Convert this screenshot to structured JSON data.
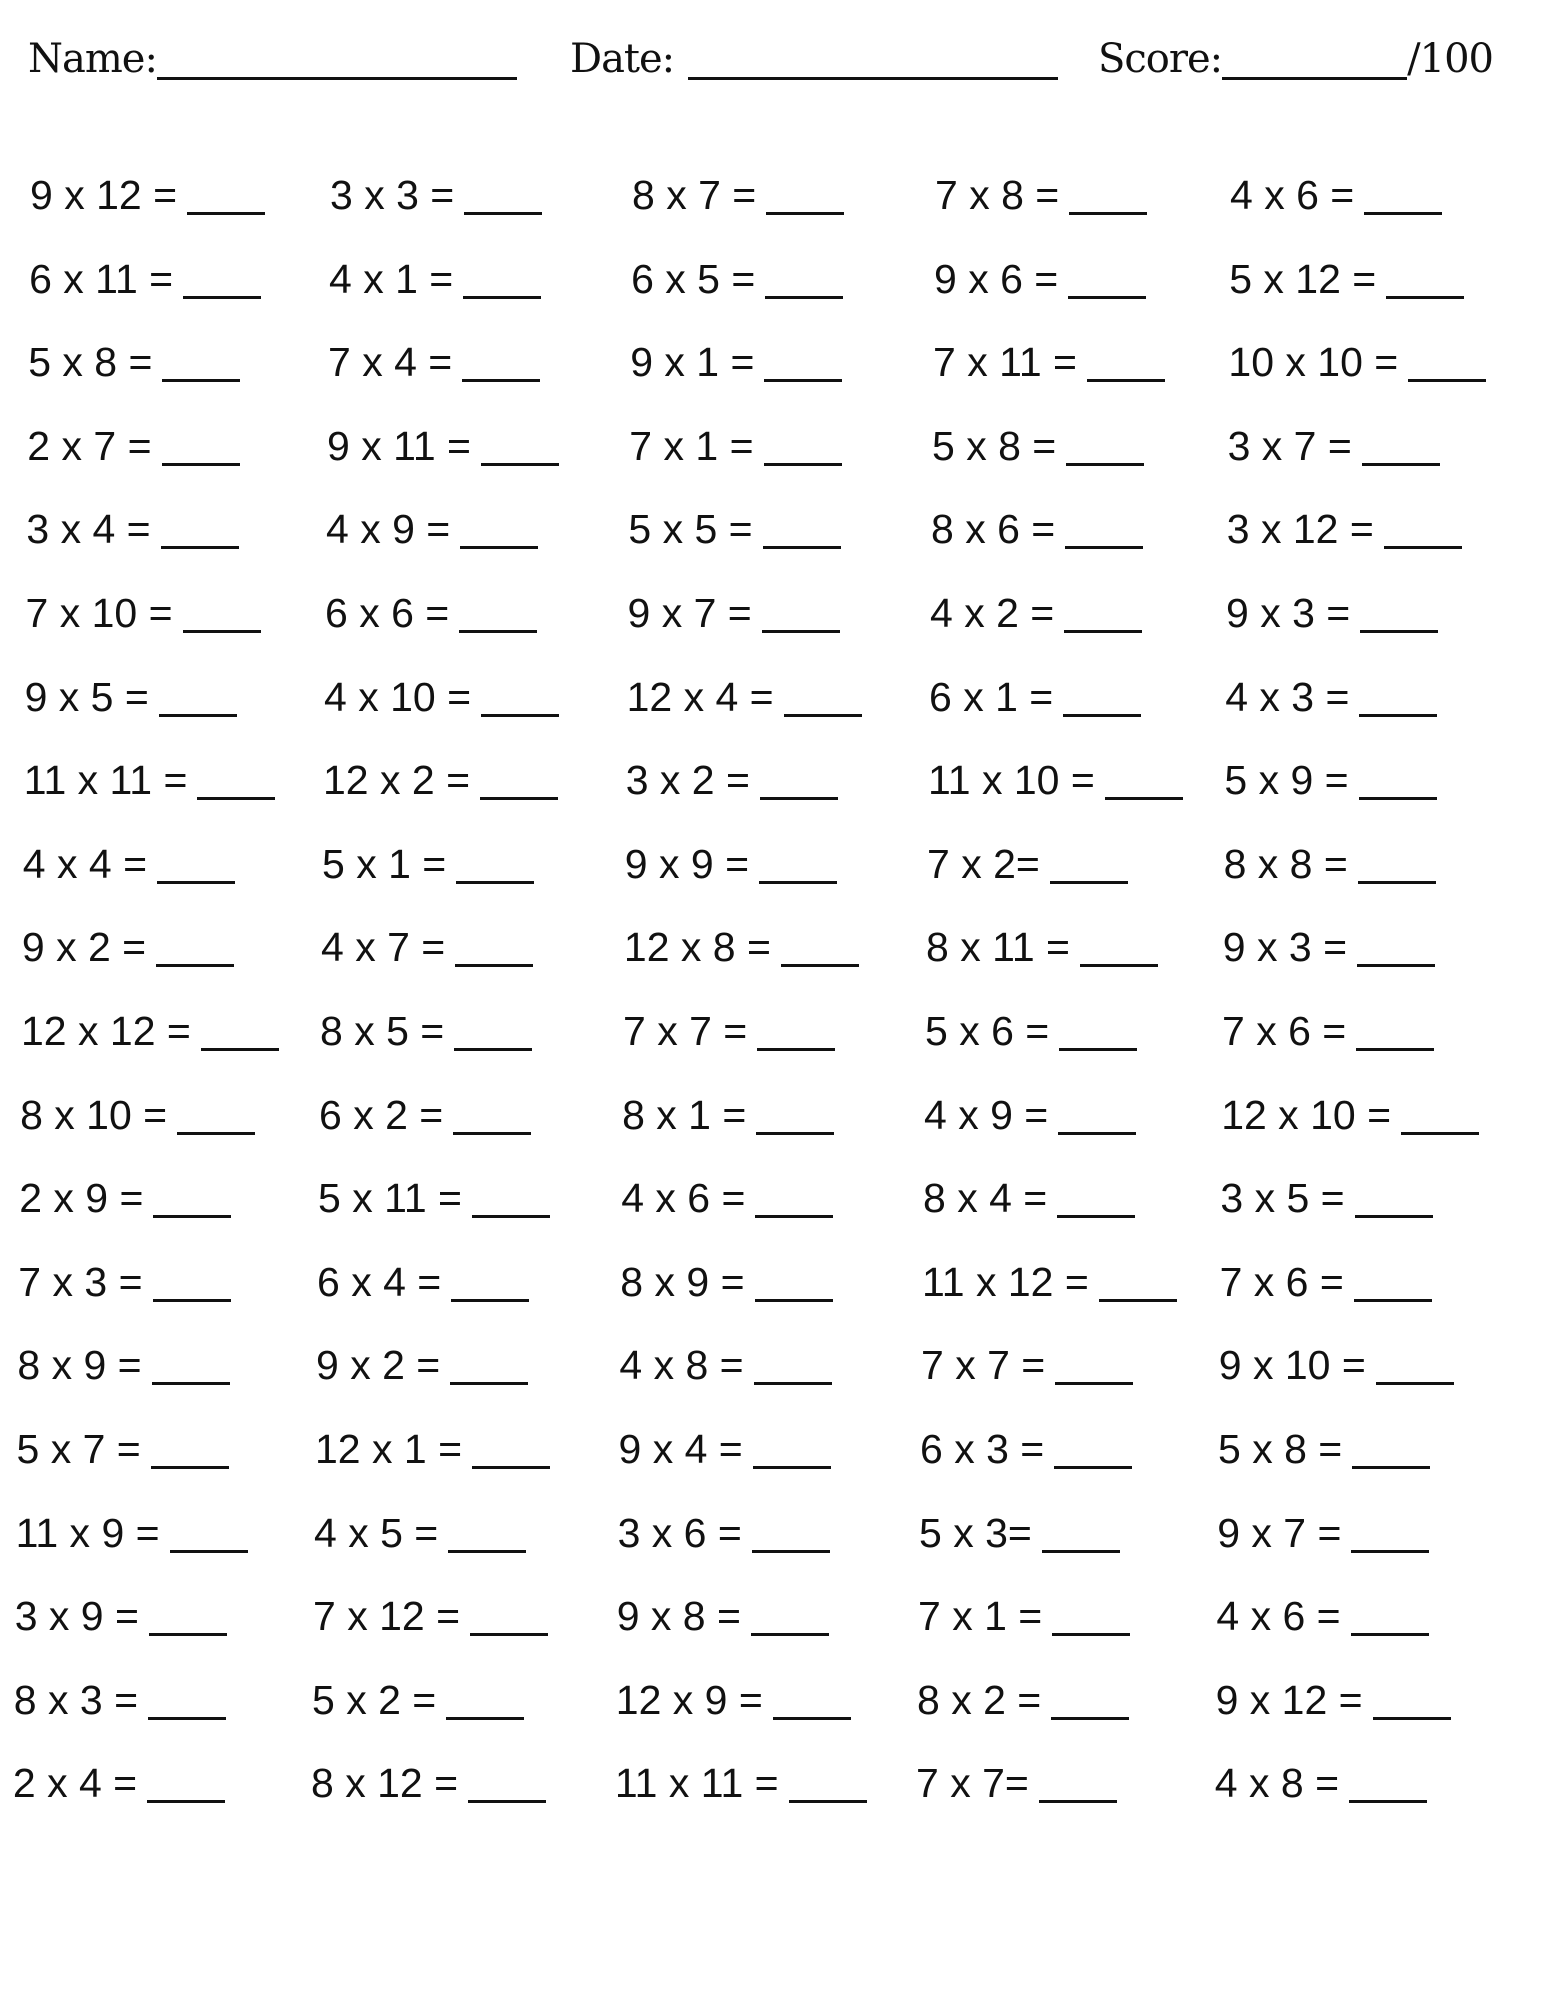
{
  "header": {
    "name_label": "Name:",
    "date_label": "Date:",
    "score_label": "Score:",
    "score_total": "/100"
  },
  "columns": [
    [
      "9 x 12 =",
      "6 x 11 =",
      "5 x 8 =",
      "2 x 7 =",
      "3 x 4 =",
      "7 x 10 =",
      "9 x 5 =",
      "11 x 11 =",
      "4 x 4 =",
      "9 x 2 =",
      "12 x 12 =",
      "8 x 10 =",
      "2 x 9 =",
      "7 x 3 =",
      "8 x 9 =",
      "5 x 7 =",
      "11 x 9 =",
      "3 x 9 =",
      "8 x 3 =",
      "2 x 4 ="
    ],
    [
      "3 x 3 =",
      "4 x 1 =",
      "7 x 4 =",
      "9 x 11 =",
      "4 x 9 =",
      "6 x 6 =",
      "4 x 10 =",
      "12 x 2 =",
      "5 x 1 =",
      "4 x 7 =",
      "8 x 5 =",
      "6 x 2 =",
      "5 x 11 =",
      "6 x 4 =",
      "9 x 2 =",
      "12 x 1 =",
      "4 x 5 =",
      "7 x 12 =",
      "5 x 2 =",
      "8 x 12 ="
    ],
    [
      "8 x 7 =",
      "6 x 5 =",
      "9 x 1 =",
      "7 x 1 =",
      "5 x 5 =",
      "9 x 7 =",
      "12 x 4 =",
      "3 x 2 =",
      "9 x 9 =",
      "12 x 8 =",
      "7 x 7 =",
      "8 x 1 =",
      "4 x 6 =",
      "8 x 9 =",
      "4 x 8 =",
      "9 x 4 =",
      "3 x 6 =",
      "9 x 8 =",
      "12 x 9 =",
      "11 x 11 ="
    ],
    [
      "7 x 8 =",
      "9 x 6 =",
      "7 x 11 =",
      "5 x 8 =",
      "8 x 6 =",
      "4 x 2 =",
      "6 x 1 =",
      "11 x 10 =",
      "7 x 2=",
      "8 x 11 =",
      "5 x 6 =",
      "4 x 9 =",
      "8 x 4 =",
      "11 x 12 =",
      "7 x 7 =",
      "6 x 3 =",
      "5 x 3=",
      "7 x 1 =",
      "8 x 2 =",
      "7 x 7="
    ],
    [
      "4 x 6 =",
      "5 x 12 =",
      "10 x 10 =",
      "3 x 7 =",
      "3 x 12 =",
      "9 x 3 =",
      "4 x 3 =",
      "5 x 9 =",
      "8 x 8 =",
      "9 x 3 =",
      "7 x 6 =",
      "12 x 10 =",
      "3 x 5 =",
      "7 x 6 =",
      "9 x 10 =",
      "5 x 8 =",
      "9 x 7 =",
      "4 x 6 =",
      "9 x 12 =",
      "4 x 8 ="
    ]
  ]
}
